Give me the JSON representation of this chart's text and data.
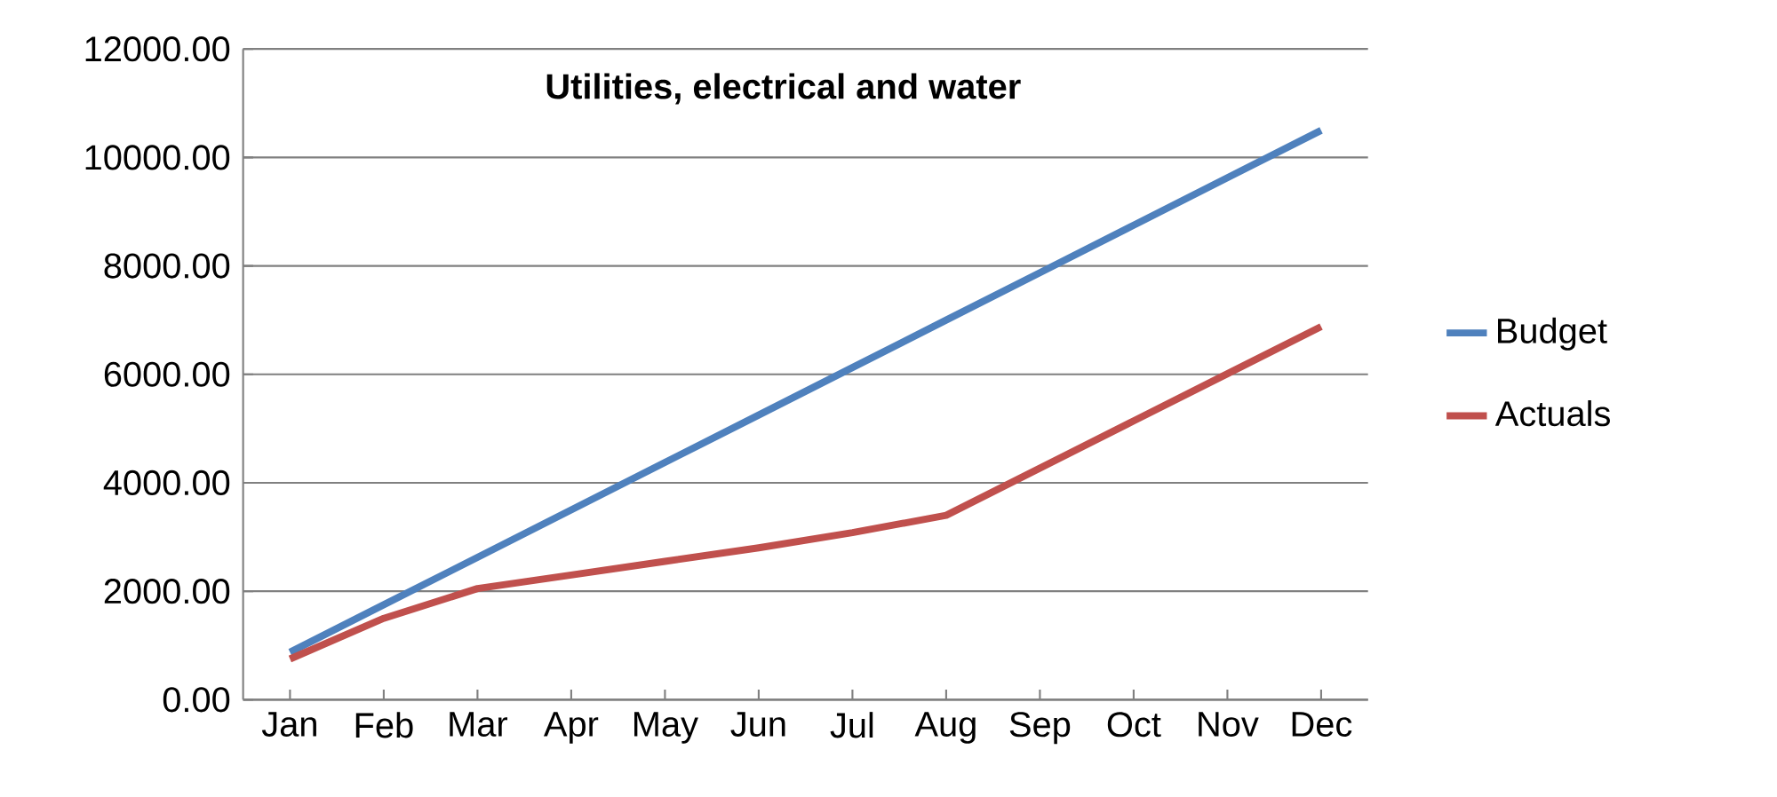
{
  "chart_data": {
    "type": "line",
    "title": "Utilities, electrical and water",
    "categories": [
      "Jan",
      "Feb",
      "Mar",
      "Apr",
      "May",
      "Jun",
      "Jul",
      "Aug",
      "Sep",
      "Oct",
      "Nov",
      "Dec"
    ],
    "series": [
      {
        "name": "Budget",
        "color": "#4f81bd",
        "values": [
          875,
          1750,
          2625,
          3500,
          4375,
          5250,
          6125,
          7000,
          7875,
          8750,
          9625,
          10500
        ]
      },
      {
        "name": "Actuals",
        "color": "#c0504d",
        "values": [
          750,
          1500,
          2050,
          2300,
          2550,
          2800,
          3080,
          3400,
          4270,
          5140,
          6010,
          6880
        ]
      }
    ],
    "ylim": [
      0,
      12000
    ],
    "yticks": [
      {
        "value": 0,
        "label": "0.00"
      },
      {
        "value": 2000,
        "label": "2000.00"
      },
      {
        "value": 4000,
        "label": "4000.00"
      },
      {
        "value": 6000,
        "label": "6000.00"
      },
      {
        "value": 8000,
        "label": "8000.00"
      },
      {
        "value": 10000,
        "label": "10000.00"
      },
      {
        "value": 12000,
        "label": "12000.00"
      }
    ],
    "grid": "y",
    "legend": "right",
    "marker": "none",
    "line_style": "solid"
  }
}
